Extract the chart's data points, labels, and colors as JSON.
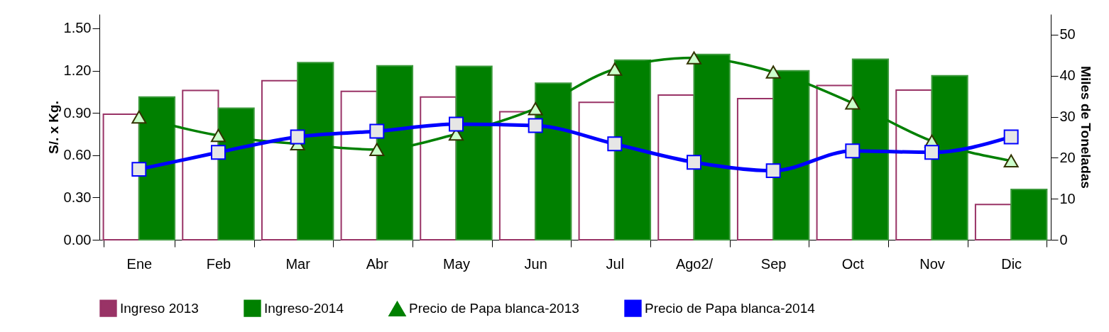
{
  "chart_data": {
    "type": "bar",
    "ylabel": "S/. x Kg.",
    "y2label": "Miles de Toneladas",
    "categories": [
      "Ene",
      "Feb",
      "Mar",
      "Abr",
      "May",
      "Jun",
      "Jul",
      "Ago2/",
      "Sep",
      "Oct",
      "Nov",
      "Dic"
    ],
    "series": [
      {
        "name": "Ingreso 2013",
        "axis": "y2",
        "color": "#993366",
        "values": [
          30.6,
          36.4,
          38.8,
          36.2,
          34.8,
          31.2,
          33.5,
          35.3,
          34.4,
          37.6,
          36.5,
          8.6
        ]
      },
      {
        "name": "Ingreso-2014",
        "axis": "y2",
        "color": "#008000",
        "values": [
          34.8,
          32.1,
          43.2,
          42.4,
          42.3,
          38.2,
          43.8,
          45.2,
          41.2,
          44.0,
          40.0,
          12.3
        ]
      },
      {
        "name": "Precio de Papa blanca-2013",
        "type": "line",
        "marker": "triangle",
        "color": "#008000",
        "values": [
          0.87,
          0.74,
          0.68,
          0.64,
          0.75,
          0.93,
          1.21,
          1.29,
          1.19,
          0.97,
          0.7,
          0.56
        ]
      },
      {
        "name": "Precio de Papa blanca-2014",
        "type": "line",
        "marker": "square",
        "color": "#0000ff",
        "values": [
          0.5,
          0.62,
          0.73,
          0.77,
          0.82,
          0.81,
          0.68,
          0.55,
          0.49,
          0.63,
          0.62,
          0.73
        ]
      }
    ],
    "ylim": [
      0,
      1.6
    ],
    "yticks": [
      {
        "value": 0,
        "label": "0.00"
      },
      {
        "value": 0.3,
        "label": "0.30"
      },
      {
        "value": 0.6,
        "label": "0.60"
      },
      {
        "value": 0.9,
        "label": "0.90"
      },
      {
        "value": 1.2,
        "label": "1.20"
      },
      {
        "value": 1.5,
        "label": "1.50"
      }
    ],
    "y2lim": [
      0,
      55
    ],
    "y2ticks": [
      0,
      10,
      20,
      30,
      40,
      50
    ],
    "legend": "bottom",
    "grid": false
  }
}
